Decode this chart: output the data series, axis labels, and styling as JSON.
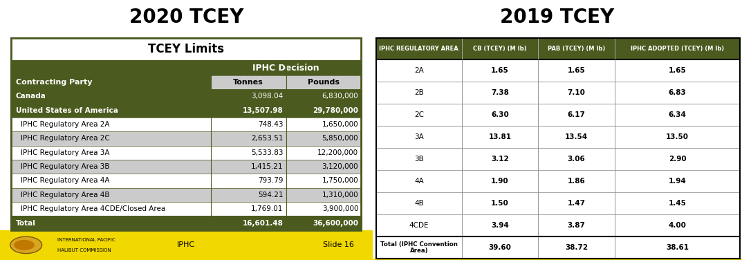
{
  "title_left": "2020 TCEY",
  "title_right": "2019 TCEY",
  "left_table_title": "TCEY Limits",
  "right_col_headers": [
    "IPHC REGULATORY AREA",
    "CB (TCEY) (M lb)",
    "PAB (TCEY) (M lb)",
    "IPHC ADOPTED (TCEY) (M lb)"
  ],
  "right_rows": [
    [
      "2A",
      "1.65",
      "1.65",
      "1.65"
    ],
    [
      "2B",
      "7.38",
      "7.10",
      "6.83"
    ],
    [
      "2C",
      "6.30",
      "6.17",
      "6.34"
    ],
    [
      "3A",
      "13.81",
      "13.54",
      "13.50"
    ],
    [
      "3B",
      "3.12",
      "3.06",
      "2.90"
    ],
    [
      "4A",
      "1.90",
      "1.86",
      "1.94"
    ],
    [
      "4B",
      "1.50",
      "1.47",
      "1.45"
    ],
    [
      "4CDE",
      "3.94",
      "3.87",
      "4.00"
    ],
    [
      "Total (IPHC Convention\nArea)",
      "39.60",
      "38.72",
      "38.61"
    ]
  ],
  "footer_bg": "#F0D800",
  "dark_green": "#4B5A1E",
  "light_gray": "#CBCBCB",
  "white": "#FFFFFF"
}
